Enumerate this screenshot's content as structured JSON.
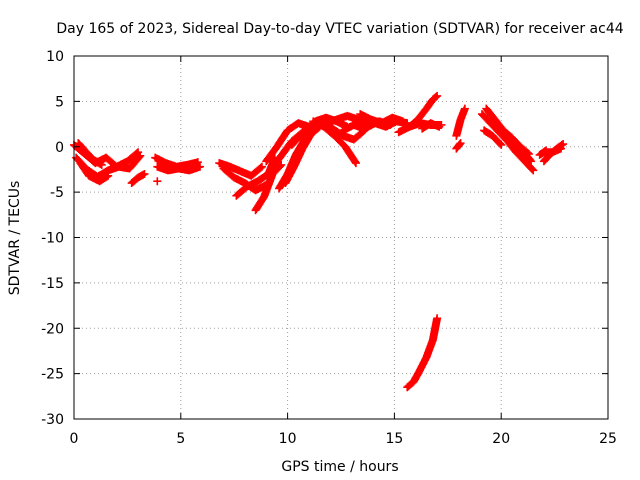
{
  "chart_data": {
    "type": "scatter",
    "title": "Day 165 of 2023, Sidereal Day-to-day VTEC variation (SDTVAR) for receiver ac44",
    "xlabel": "GPS time / hours",
    "ylabel": "SDTVAR / TECUs",
    "xlim": [
      0,
      25
    ],
    "ylim": [
      -30,
      10
    ],
    "xticks": [
      0,
      5,
      10,
      15,
      20,
      25
    ],
    "xtick_labels": [
      "0",
      "5",
      "10",
      "15",
      "20",
      "25"
    ],
    "yticks": [
      10,
      5,
      0,
      -5,
      -10,
      -15,
      -20,
      -25,
      -30
    ],
    "ytick_labels": [
      "10",
      "5",
      "0",
      "-5",
      "-10",
      "-15",
      "-20",
      "-25",
      "-30"
    ],
    "grid": true,
    "marker": "+",
    "series_color": "#ff0000",
    "segments": [
      {
        "x": [
          0.0,
          0.5,
          1.0,
          1.5,
          2.0,
          2.5,
          3.0
        ],
        "y": [
          0.2,
          -0.8,
          -1.8,
          -1.2,
          -2.2,
          -1.6,
          -0.6
        ]
      },
      {
        "x": [
          0.1,
          0.6,
          1.1,
          1.6,
          2.1,
          2.6,
          3.1
        ],
        "y": [
          -1.2,
          -2.5,
          -3.3,
          -2.6,
          -2.2,
          -2.4,
          -1.0
        ]
      },
      {
        "x": [
          0.3,
          0.7,
          1.2,
          1.6
        ],
        "y": [
          -1.8,
          -3.2,
          -3.8,
          -3.2
        ]
      },
      {
        "x": [
          0.2,
          0.5,
          0.9,
          1.3
        ],
        "y": [
          0.4,
          -0.4,
          -1.4,
          -2.0
        ]
      },
      {
        "x": [
          2.7,
          3.0,
          3.3
        ],
        "y": [
          -4.0,
          -3.4,
          -3.0
        ]
      },
      {
        "x": [
          3.8,
          4.3,
          4.8,
          5.3,
          5.8
        ],
        "y": [
          -1.2,
          -1.8,
          -2.2,
          -2.0,
          -1.7
        ]
      },
      {
        "x": [
          3.9,
          4.4,
          4.9,
          5.4,
          5.9
        ],
        "y": [
          -2.2,
          -2.6,
          -2.4,
          -2.6,
          -2.2
        ]
      },
      {
        "x": [
          3.9
        ],
        "y": [
          -3.8
        ]
      },
      {
        "x": [
          6.8,
          7.3,
          7.8,
          8.3,
          8.8
        ],
        "y": [
          -1.8,
          -2.2,
          -2.7,
          -3.2,
          -2.2
        ]
      },
      {
        "x": [
          7.0,
          7.5,
          8.0,
          8.5,
          9.0
        ],
        "y": [
          -2.4,
          -3.4,
          -4.0,
          -4.8,
          -4.2
        ]
      },
      {
        "x": [
          7.6,
          8.1,
          8.6,
          9.1,
          9.4
        ],
        "y": [
          -5.4,
          -4.4,
          -3.8,
          -3.0,
          -1.2
        ]
      },
      {
        "x": [
          8.5,
          8.9,
          9.3,
          9.7
        ],
        "y": [
          -7.0,
          -5.5,
          -3.0,
          -2.0
        ]
      },
      {
        "x": [
          9.0,
          9.5,
          10.0,
          10.5,
          11.0
        ],
        "y": [
          -1.6,
          0.0,
          1.8,
          2.6,
          2.2
        ]
      },
      {
        "x": [
          9.2,
          9.7,
          10.2,
          10.7,
          11.2
        ],
        "y": [
          -2.6,
          -1.0,
          0.6,
          1.6,
          2.4
        ]
      },
      {
        "x": [
          9.6,
          10.0,
          10.4,
          10.8
        ],
        "y": [
          -4.6,
          -3.0,
          -0.8,
          0.8
        ]
      },
      {
        "x": [
          9.9,
          10.3,
          10.7,
          11.1,
          11.5
        ],
        "y": [
          -4.0,
          -2.2,
          -0.2,
          1.4,
          2.2
        ]
      },
      {
        "x": [
          10.2,
          10.8,
          11.3,
          11.8,
          12.3,
          12.8
        ],
        "y": [
          0.2,
          1.8,
          2.8,
          3.2,
          2.8,
          2.2
        ]
      },
      {
        "x": [
          10.6,
          11.1,
          11.6,
          12.1,
          12.6,
          13.1,
          13.6
        ],
        "y": [
          1.0,
          2.2,
          2.6,
          2.0,
          1.2,
          0.8,
          1.8
        ]
      },
      {
        "x": [
          11.2,
          11.7,
          12.2,
          12.7,
          13.2
        ],
        "y": [
          2.8,
          2.2,
          1.2,
          0.0,
          -1.8
        ]
      },
      {
        "x": [
          11.8,
          12.3,
          12.8,
          13.3,
          13.8,
          14.3,
          14.8
        ],
        "y": [
          2.6,
          3.0,
          3.4,
          3.0,
          2.6,
          2.8,
          2.4
        ]
      },
      {
        "x": [
          12.6,
          13.1,
          13.6,
          14.1,
          14.6,
          15.1,
          15.6
        ],
        "y": [
          1.8,
          2.4,
          2.0,
          2.6,
          2.2,
          2.8,
          2.6
        ]
      },
      {
        "x": [
          13.4,
          13.9,
          14.4,
          14.9,
          15.4
        ],
        "y": [
          3.6,
          3.0,
          2.6,
          3.2,
          2.8
        ]
      },
      {
        "x": [
          15.2,
          15.7,
          16.2,
          16.7,
          17.2
        ],
        "y": [
          1.6,
          2.2,
          2.6,
          2.4,
          2.4
        ]
      },
      {
        "x": [
          15.7,
          16.1,
          16.5,
          16.8,
          17.0
        ],
        "y": [
          2.2,
          3.0,
          4.2,
          5.2,
          5.6
        ]
      },
      {
        "x": [
          16.3,
          16.7,
          17.1
        ],
        "y": [
          2.0,
          2.6,
          2.2
        ]
      },
      {
        "x": [
          17.9,
          18.1,
          18.3
        ],
        "y": [
          1.2,
          3.0,
          4.2
        ]
      },
      {
        "x": [
          17.9,
          18.1
        ],
        "y": [
          -0.2,
          0.4
        ]
      },
      {
        "x": [
          15.6,
          15.9,
          16.2,
          16.5,
          16.8,
          17.0
        ],
        "y": [
          -26.5,
          -25.9,
          -24.6,
          -23.2,
          -21.3,
          -18.9
        ]
      },
      {
        "x": [
          19.1,
          19.5,
          19.9,
          20.3,
          20.7,
          21.1,
          21.5
        ],
        "y": [
          3.6,
          2.6,
          1.6,
          0.6,
          -0.6,
          -1.6,
          -2.6
        ]
      },
      {
        "x": [
          19.3,
          19.7,
          20.1,
          20.5,
          20.9,
          21.3
        ],
        "y": [
          4.2,
          3.0,
          1.8,
          1.0,
          0.0,
          -0.8
        ]
      },
      {
        "x": [
          19.8,
          20.2,
          20.6,
          21.0,
          21.4
        ],
        "y": [
          2.4,
          1.4,
          0.4,
          -0.4,
          -1.6
        ]
      },
      {
        "x": [
          19.2,
          19.6,
          20.0
        ],
        "y": [
          1.8,
          1.2,
          0.2
        ]
      },
      {
        "x": [
          22.0,
          22.3,
          22.6,
          22.9
        ],
        "y": [
          -1.6,
          -0.8,
          -0.2,
          0.3
        ]
      },
      {
        "x": [
          22.0,
          22.4,
          22.8
        ],
        "y": [
          -0.6,
          -0.6,
          -0.2
        ]
      },
      {
        "x": [
          21.8,
          22.1
        ],
        "y": [
          -0.9,
          -0.4
        ]
      }
    ]
  }
}
